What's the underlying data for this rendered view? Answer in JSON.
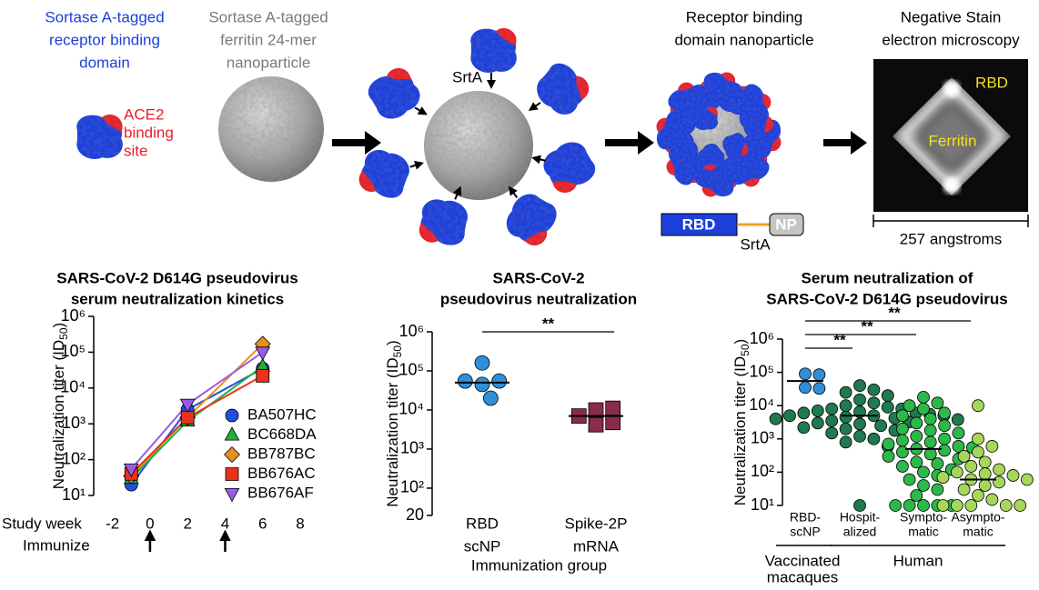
{
  "diagram": {
    "rbd_label": [
      "Sortase A-tagged",
      "receptor binding",
      "domain"
    ],
    "ferritin_label": [
      "Sortase A-tagged",
      "ferritin 24-mer",
      "nanoparticle"
    ],
    "ace2_label": [
      "ACE2",
      "binding",
      "site"
    ],
    "srta_label": "SrtA",
    "nanoparticle_label": [
      "Receptor binding",
      "domain nanoparticle"
    ],
    "em_label": [
      "Negative Stain",
      "electron microscopy"
    ],
    "em_rbd": "RBD",
    "em_ferritin": "Ferritin",
    "construct": {
      "rbd": "RBD",
      "np": "NP",
      "linker": "SrtA"
    },
    "scale_bar": "257 angstroms"
  },
  "chart_data": [
    {
      "type": "line",
      "title": [
        "SARS-CoV-2 D614G pseudovirus",
        "serum neutralization kinetics"
      ],
      "y_label": [
        "Neutralization titer (ID",
        "50",
        ")"
      ],
      "x_label": "Study week",
      "immunize_label": "Immunize",
      "immunize_weeks": [
        0,
        4
      ],
      "x": [
        -1,
        2,
        6
      ],
      "xlim": [
        -3,
        8
      ],
      "xticks": [
        -2,
        0,
        2,
        4,
        6,
        8
      ],
      "ylim": [
        10,
        1000000
      ],
      "y_log": true,
      "yticks": [
        {
          "value": 10,
          "label": "10¹"
        },
        {
          "value": 100,
          "label": "10²"
        },
        {
          "value": 1000,
          "label": "10³"
        },
        {
          "value": 10000,
          "label": "10⁴"
        },
        {
          "value": 100000,
          "label": "10⁵"
        },
        {
          "value": 1000000,
          "label": "10⁶"
        }
      ],
      "legend": "lower right",
      "series": [
        {
          "name": "BA507HC",
          "color": "#1f4fe0",
          "marker": "circle",
          "values": [
            20,
            2500,
            35000
          ]
        },
        {
          "name": "BC668DA",
          "color": "#1fb33a",
          "marker": "triangle",
          "values": [
            30,
            1200,
            40000
          ]
        },
        {
          "name": "BB787BC",
          "color": "#e8901e",
          "marker": "diamond",
          "values": [
            35,
            1500,
            170000
          ]
        },
        {
          "name": "BB676AC",
          "color": "#e8321e",
          "marker": "square",
          "values": [
            40,
            1500,
            22000
          ]
        },
        {
          "name": "BB676AF",
          "color": "#9b5ae6",
          "marker": "triangle-down",
          "values": [
            55,
            3500,
            100000
          ]
        }
      ]
    },
    {
      "type": "strip",
      "title": [
        "SARS-CoV-2",
        "pseudovirus neutralization"
      ],
      "y_label": [
        "Neutralization titer (ID",
        "50",
        ")"
      ],
      "x_label": "Immunization group",
      "categories": [
        [
          "RBD",
          "scNP"
        ],
        [
          "Spike-2P",
          "mRNA"
        ]
      ],
      "ylim": [
        20,
        1000000
      ],
      "y_log": true,
      "yticks": [
        20,
        {
          "value": 100,
          "label": "10²"
        },
        {
          "value": 1000,
          "label": "10³"
        },
        {
          "value": 10000,
          "label": "10⁴"
        },
        {
          "value": 100000,
          "label": "10⁵"
        },
        {
          "value": 1000000,
          "label": "10⁶"
        }
      ],
      "groups": [
        {
          "color": "#2f8fd8",
          "marker": "circle",
          "values": [
            160000,
            45000,
            55000,
            55000,
            20000
          ],
          "median": 50000
        },
        {
          "color": "#8a2a4e",
          "marker": "square",
          "values": [
            10000,
            11000,
            7000,
            4200,
            4800
          ],
          "median": 7000
        }
      ],
      "significance": [
        {
          "label": "**",
          "pair": [
            0,
            1
          ]
        }
      ]
    },
    {
      "type": "strip",
      "title": [
        "Serum neutralization of",
        "SARS-CoV-2 D614G pseudovirus"
      ],
      "y_label": [
        "Neutralization titer (ID",
        "50",
        ")"
      ],
      "categories": [
        [
          "RBD-",
          "scNP"
        ],
        [
          "Hospit-",
          "alized"
        ],
        [
          "Sympto-",
          "matic"
        ],
        [
          "Asympto-",
          "matic"
        ]
      ],
      "group_labels": [
        {
          "label": [
            "Vaccinated",
            "macaques"
          ],
          "span": [
            0,
            0
          ]
        },
        {
          "label": [
            "Human"
          ],
          "span": [
            1,
            3
          ]
        }
      ],
      "ylim": [
        10,
        1000000
      ],
      "y_log": true,
      "yticks": [
        {
          "value": 10,
          "label": "10¹"
        },
        {
          "value": 100,
          "label": "10²"
        },
        {
          "value": 1000,
          "label": "10³"
        },
        {
          "value": 10000,
          "label": "10⁴"
        },
        {
          "value": 100000,
          "label": "10⁵"
        },
        {
          "value": 1000000,
          "label": "10⁶"
        }
      ],
      "groups": [
        {
          "color": "#2f8fd8",
          "marker": "circle",
          "values": [
            90000,
            85000,
            35000,
            33000
          ],
          "median": 55000
        },
        {
          "color": "#1f7a4f",
          "marker": "circle",
          "values": [
            40000,
            30000,
            25000,
            20000,
            15000,
            12000,
            10000,
            9000,
            8000,
            8000,
            7000,
            6500,
            6000,
            6000,
            5500,
            5000,
            5000,
            5000,
            4500,
            4200,
            4000,
            3800,
            3500,
            3200,
            3000,
            2800,
            2500,
            2200,
            2000,
            1800,
            1500,
            1200,
            1000,
            800,
            600,
            10
          ],
          "median": 5000
        },
        {
          "color": "#2db84a",
          "marker": "circle",
          "values": [
            18000,
            12000,
            10000,
            8000,
            6000,
            5000,
            4000,
            3000,
            2500,
            2000,
            1800,
            1500,
            1200,
            1000,
            900,
            800,
            700,
            600,
            550,
            500,
            450,
            400,
            350,
            300,
            250,
            200,
            180,
            150,
            120,
            100,
            80,
            60,
            40,
            30,
            20,
            10,
            10,
            10,
            10,
            10
          ],
          "median": 500
        },
        {
          "color": "#a6d65a",
          "marker": "circle",
          "values": [
            10000,
            1000,
            600,
            400,
            300,
            200,
            150,
            120,
            100,
            90,
            80,
            70,
            60,
            60,
            50,
            40,
            30,
            20,
            15,
            10,
            10,
            10,
            10,
            10
          ],
          "median": 60
        }
      ],
      "significance": [
        {
          "label": "**",
          "pair": [
            0,
            1
          ]
        },
        {
          "label": "**",
          "pair": [
            0,
            2
          ]
        },
        {
          "label": "**",
          "pair": [
            0,
            3
          ]
        }
      ]
    }
  ]
}
